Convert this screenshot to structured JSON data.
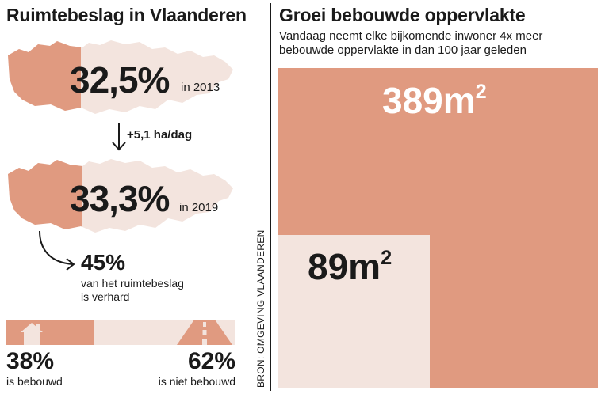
{
  "left": {
    "title": "Ruimtebeslag in Vlaanderen",
    "map_2013": {
      "value": "32,5%",
      "year": "in 2013"
    },
    "change": "+5,1 ha/dag",
    "map_2019": {
      "value": "33,3%",
      "year": "in 2019"
    },
    "sealed": {
      "value": "45%",
      "line1": "van het ruimtebeslag",
      "line2": "is verhard"
    },
    "built_bar": {
      "built_fraction": 0.38,
      "built_value": "38%",
      "built_label": "is bebouwd",
      "unbuilt_value": "62%",
      "unbuilt_label": "is niet bebouwd",
      "built_icon": "house-icon",
      "unbuilt_icon": "road-icon"
    }
  },
  "source": "BRON: OMGEVING VLAANDEREN",
  "right": {
    "title": "Groei bebouwde oppervlakte",
    "subtitle_line1": "Vandaag neemt elke bijkomende inwoner 4x meer",
    "subtitle_line2": "bebouwde oppervlakte in dan 100 jaar geleden",
    "today": {
      "value": "389",
      "unit": "m",
      "exp": "2",
      "area_m2": 389
    },
    "past": {
      "value": "89",
      "unit": "m",
      "exp": "2",
      "area_m2": 89
    }
  },
  "colors": {
    "accent": "#e09a80",
    "light": "#f3e4de",
    "text": "#1a1a1a"
  }
}
